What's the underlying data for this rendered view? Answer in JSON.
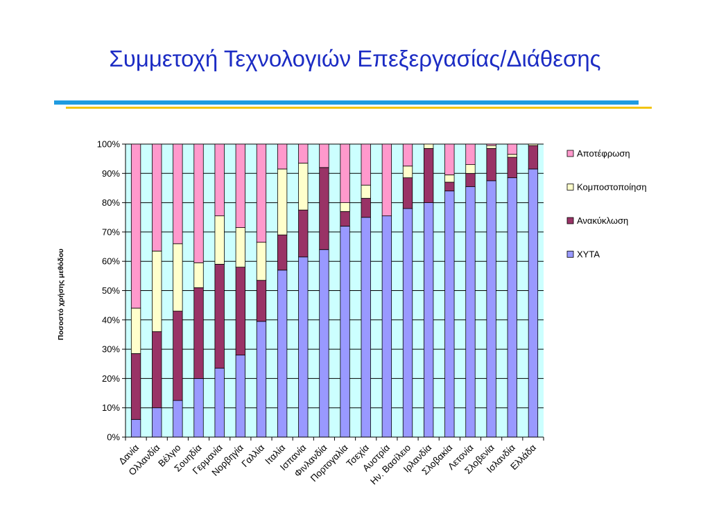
{
  "slide": {
    "title": "Συμμετοχή Τεχνολογιών Επεξεργασίας/Διάθεσης"
  },
  "colors": {
    "title": "#1c2cc4",
    "rule_blue": "#1f9be0",
    "rule_yellow": "#f2c40e",
    "plot_background": "#ccffff"
  },
  "chart_data": {
    "type": "bar",
    "stacked": true,
    "percent": true,
    "title": "",
    "xlabel": "",
    "ylabel": "Ποσοστό χρήσης μεθόδου",
    "ylim": [
      0,
      100
    ],
    "yticks": [
      "0%",
      "10%",
      "20%",
      "30%",
      "40%",
      "50%",
      "60%",
      "70%",
      "80%",
      "90%",
      "100%"
    ],
    "grid": true,
    "legend_position": "right",
    "categories": [
      "Δανία",
      "Ολλανδία",
      "Βέλγιο",
      "Σουηδία",
      "Γερμανία",
      "Νορβηγία",
      "Γαλλία",
      "Ιταλία",
      "Ισπανία",
      "Φινλανδία",
      "Πορτογαλία",
      "Τσεχία",
      "Αυστρία",
      "Ην. Βασίλειο",
      "Ιρλανδία",
      "Σλοβακία",
      "Λετονία",
      "Σλοβενία",
      "Ισλανδία",
      "Ελλάδα"
    ],
    "series": [
      {
        "name": "ΧΥΤΑ",
        "color": "#9999ff",
        "values": [
          6,
          10,
          12.5,
          20,
          23.5,
          28,
          39.5,
          57,
          61.5,
          64,
          72,
          75,
          75.5,
          78,
          80,
          84,
          85.5,
          87.5,
          88.5,
          91.5
        ]
      },
      {
        "name": "Ανακύκλωση",
        "color": "#993366",
        "values": [
          22.5,
          26,
          30.5,
          31,
          35.5,
          30,
          14,
          12,
          16,
          28,
          5,
          6.5,
          0,
          10.5,
          18.5,
          3,
          4.5,
          11,
          7,
          8
        ]
      },
      {
        "name": "Κομποστοποίηση",
        "color": "#ffffcc",
        "values": [
          15.5,
          27.5,
          23,
          8.5,
          16.5,
          13.5,
          13,
          22.5,
          16,
          0,
          3,
          4.5,
          0,
          4,
          1.5,
          2.5,
          3,
          1,
          1,
          0.5
        ]
      },
      {
        "name": "Αποτέφρωση",
        "color": "#ff99cc",
        "values": [
          56,
          36.5,
          34,
          40.5,
          24.5,
          28.5,
          33.5,
          8.5,
          6.5,
          8,
          20,
          14,
          24.5,
          7.5,
          0,
          10.5,
          7,
          0.5,
          3.5,
          0
        ]
      }
    ],
    "legend_order": [
      "Αποτέφρωση",
      "Κομποστοποίηση",
      "Ανακύκλωση",
      "ΧΥΤΑ"
    ]
  }
}
